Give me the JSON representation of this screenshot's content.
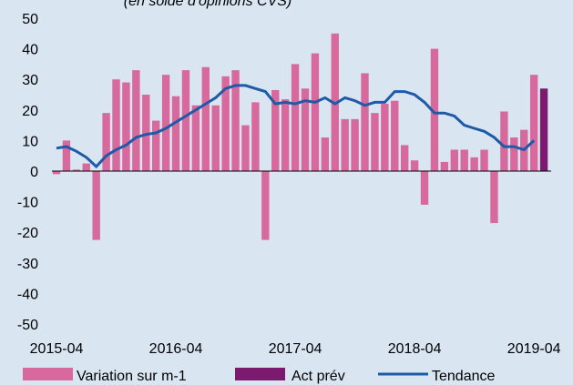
{
  "chart_data": {
    "type": "bar+line",
    "subtitle": "(en solde d'opinions CVS)",
    "categories": [
      "2015-04",
      null,
      null,
      null,
      null,
      null,
      null,
      null,
      null,
      null,
      null,
      null,
      "2016-04",
      null,
      null,
      null,
      null,
      null,
      null,
      null,
      null,
      null,
      null,
      null,
      "2017-04",
      null,
      null,
      null,
      null,
      null,
      null,
      null,
      null,
      null,
      null,
      null,
      "2018-04",
      null,
      null,
      null,
      null,
      null,
      null,
      null,
      null,
      null,
      null,
      null,
      "2019-04",
      null
    ],
    "series": [
      {
        "name": "Variation sur m-1",
        "type": "bar",
        "color": "#d8699c",
        "values": [
          -1,
          10,
          0.5,
          2.5,
          -22.5,
          19,
          30,
          29,
          33,
          25,
          16.5,
          31.5,
          24.5,
          33,
          21.5,
          34,
          21.5,
          31,
          33,
          15,
          22.5,
          -22.5,
          26.5,
          23.5,
          35,
          27,
          38.5,
          11,
          45,
          17,
          17,
          32,
          19,
          22,
          23,
          8.5,
          3.5,
          -11,
          40,
          3,
          7,
          7,
          4.5,
          7,
          -17,
          19.5,
          11,
          13.5,
          31.5,
          null
        ]
      },
      {
        "name": "Act  prév",
        "type": "bar",
        "color": "#7b1a6e",
        "values": [
          null,
          null,
          null,
          null,
          null,
          null,
          null,
          null,
          null,
          null,
          null,
          null,
          null,
          null,
          null,
          null,
          null,
          null,
          null,
          null,
          null,
          null,
          null,
          null,
          null,
          null,
          null,
          null,
          null,
          null,
          null,
          null,
          null,
          null,
          null,
          null,
          null,
          null,
          null,
          null,
          null,
          null,
          null,
          null,
          null,
          null,
          null,
          null,
          null,
          27
        ]
      },
      {
        "name": "Tendance",
        "type": "line",
        "color": "#1f5aa6",
        "values": [
          7.5,
          8,
          6.5,
          4.5,
          1.5,
          5,
          7,
          8.5,
          11,
          12,
          12.5,
          14,
          16,
          18,
          20,
          22,
          24,
          27,
          28,
          28,
          27,
          26,
          22,
          22.5,
          22,
          23,
          22.5,
          24,
          22,
          24,
          23,
          21.5,
          22.5,
          22.5,
          26,
          26,
          25,
          22.5,
          19,
          19,
          18,
          15,
          14,
          13,
          11,
          8,
          8,
          7,
          10,
          null
        ]
      }
    ],
    "ylim": [
      -50,
      50
    ],
    "yticks": [
      50,
      40,
      30,
      20,
      10,
      0,
      -10,
      -20,
      -30,
      -40,
      -50
    ]
  }
}
